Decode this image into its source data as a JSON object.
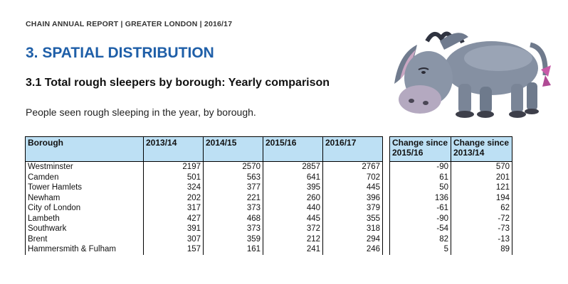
{
  "header": {
    "report_line": "CHAIN ANNUAL REPORT | GREATER LONDON | 2016/17"
  },
  "section": {
    "title": "3. SPATIAL DISTRIBUTION"
  },
  "subsection": {
    "title": "3.1 Total rough sleepers by borough: Yearly comparison"
  },
  "intro": {
    "text": "People seen rough sleeping in the year, by borough."
  },
  "illustration": {
    "icon": "donkey-illustration"
  },
  "table": {
    "headers": {
      "borough": "Borough",
      "y1": "2013/14",
      "y2": "2014/15",
      "y3": "2015/16",
      "y4": "2016/17",
      "ch1_line1": "Change since",
      "ch1_line2": "2015/16",
      "ch2_line1": "Change since",
      "ch2_line2": "2013/14"
    },
    "rows": [
      {
        "borough": "Westminster",
        "y1": "2197",
        "y2": "2570",
        "y3": "2857",
        "y4": "2767",
        "ch1": "-90",
        "ch2": "570"
      },
      {
        "borough": "Camden",
        "y1": "501",
        "y2": "563",
        "y3": "641",
        "y4": "702",
        "ch1": "61",
        "ch2": "201"
      },
      {
        "borough": "Tower Hamlets",
        "y1": "324",
        "y2": "377",
        "y3": "395",
        "y4": "445",
        "ch1": "50",
        "ch2": "121"
      },
      {
        "borough": "Newham",
        "y1": "202",
        "y2": "221",
        "y3": "260",
        "y4": "396",
        "ch1": "136",
        "ch2": "194"
      },
      {
        "borough": "City of London",
        "y1": "317",
        "y2": "373",
        "y3": "440",
        "y4": "379",
        "ch1": "-61",
        "ch2": "62"
      },
      {
        "borough": "Lambeth",
        "y1": "427",
        "y2": "468",
        "y3": "445",
        "y4": "355",
        "ch1": "-90",
        "ch2": "-72"
      },
      {
        "borough": "Southwark",
        "y1": "391",
        "y2": "373",
        "y3": "372",
        "y4": "318",
        "ch1": "-54",
        "ch2": "-73"
      },
      {
        "borough": "Brent",
        "y1": "307",
        "y2": "359",
        "y3": "212",
        "y4": "294",
        "ch1": "82",
        "ch2": "-13"
      },
      {
        "borough": "Hammersmith & Fulham",
        "y1": "157",
        "y2": "161",
        "y3": "241",
        "y4": "246",
        "ch1": "5",
        "ch2": "89"
      }
    ]
  }
}
